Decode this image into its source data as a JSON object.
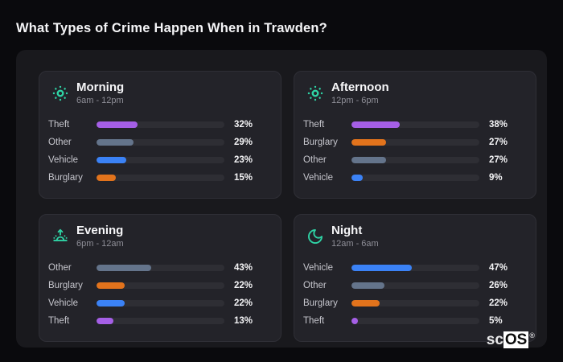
{
  "page": {
    "title": "What Types of Crime Happen When in Trawden?",
    "watermark": {
      "prefix": "sc",
      "suffix": "OS",
      "registered": "®"
    }
  },
  "colors": {
    "background": "#0a0a0d",
    "panel": "#19191d",
    "card": "#232329",
    "card_border": "#2f2f36",
    "track": "#2e2e34",
    "icon_accent": "#2fd3a5",
    "bars": {
      "theft": "#a55fe6",
      "other": "#64748b",
      "vehicle": "#3b82f6",
      "burglary": "#e2731c"
    }
  },
  "chart_data": [
    {
      "type": "bar",
      "title": "Morning",
      "subtitle": "6am - 12pm",
      "icon": "sun-icon",
      "categories": [
        "Theft",
        "Other",
        "Vehicle",
        "Burglary"
      ],
      "values": [
        32,
        29,
        23,
        15
      ],
      "unit": "%",
      "xlim": [
        0,
        100
      ],
      "orientation": "horizontal",
      "grid": false,
      "legend": false
    },
    {
      "type": "bar",
      "title": "Afternoon",
      "subtitle": "12pm - 6pm",
      "icon": "sun-icon",
      "categories": [
        "Theft",
        "Burglary",
        "Other",
        "Vehicle"
      ],
      "values": [
        38,
        27,
        27,
        9
      ],
      "unit": "%",
      "xlim": [
        0,
        100
      ],
      "orientation": "horizontal",
      "grid": false,
      "legend": false
    },
    {
      "type": "bar",
      "title": "Evening",
      "subtitle": "6pm - 12am",
      "icon": "sunrise-icon",
      "categories": [
        "Other",
        "Burglary",
        "Vehicle",
        "Theft"
      ],
      "values": [
        43,
        22,
        22,
        13
      ],
      "unit": "%",
      "xlim": [
        0,
        100
      ],
      "orientation": "horizontal",
      "grid": false,
      "legend": false
    },
    {
      "type": "bar",
      "title": "Night",
      "subtitle": "12am - 6am",
      "icon": "moon-icon",
      "categories": [
        "Vehicle",
        "Other",
        "Burglary",
        "Theft"
      ],
      "values": [
        47,
        26,
        22,
        5
      ],
      "unit": "%",
      "xlim": [
        0,
        100
      ],
      "orientation": "horizontal",
      "grid": false,
      "legend": false
    }
  ]
}
